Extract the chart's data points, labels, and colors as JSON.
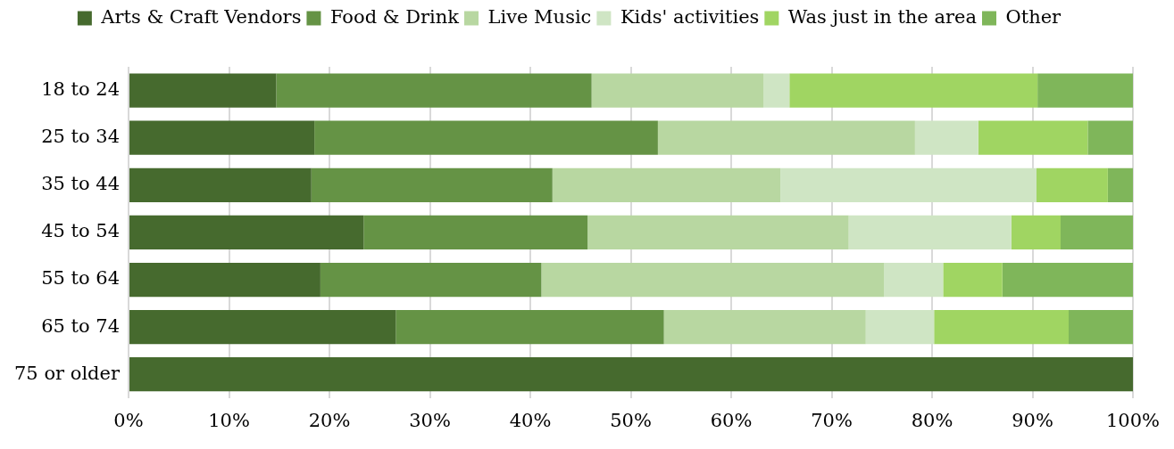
{
  "chart_data": {
    "type": "bar",
    "orientation": "horizontal",
    "stacked": true,
    "legend": "top",
    "grid": "x",
    "categories": [
      "18 to 24",
      "25 to 34",
      "35 to 44",
      "45 to 54",
      "55 to 64",
      "65 to 74",
      "75 or older"
    ],
    "xlim": [
      0,
      100
    ],
    "xticks": [
      {
        "value": 0,
        "label": "0%"
      },
      {
        "value": 10,
        "label": "10%"
      },
      {
        "value": 20,
        "label": "20%"
      },
      {
        "value": 30,
        "label": "30%"
      },
      {
        "value": 40,
        "label": "40%"
      },
      {
        "value": 50,
        "label": "50%"
      },
      {
        "value": 60,
        "label": "60%"
      },
      {
        "value": 70,
        "label": "70%"
      },
      {
        "value": 80,
        "label": "80%"
      },
      {
        "value": 90,
        "label": "90%"
      },
      {
        "value": 100,
        "label": "100%"
      }
    ],
    "series": [
      {
        "name": "Arts & Craft Vendors",
        "color": "#466a2e",
        "values": [
          14.7,
          18.5,
          18.2,
          23.4,
          19.1,
          26.6,
          100
        ]
      },
      {
        "name": "Food & Drink",
        "color": "#659345",
        "values": [
          31.4,
          34.2,
          24.0,
          22.3,
          22.0,
          26.7,
          0
        ]
      },
      {
        "name": "Live Music",
        "color": "#b8d7a1",
        "values": [
          17.1,
          25.6,
          22.7,
          26.0,
          34.1,
          20.1,
          0
        ]
      },
      {
        "name": "Kids' activities",
        "color": "#cfe5c4",
        "values": [
          2.6,
          6.3,
          25.5,
          16.2,
          5.9,
          6.8,
          0
        ]
      },
      {
        "name": "Was just in the area",
        "color": "#a0d562",
        "values": [
          24.7,
          10.9,
          7.1,
          4.9,
          5.9,
          13.4,
          0
        ]
      },
      {
        "name": "Other",
        "color": "#7fb65a",
        "values": [
          9.5,
          4.5,
          2.5,
          7.2,
          13.0,
          6.4,
          0
        ]
      }
    ]
  }
}
